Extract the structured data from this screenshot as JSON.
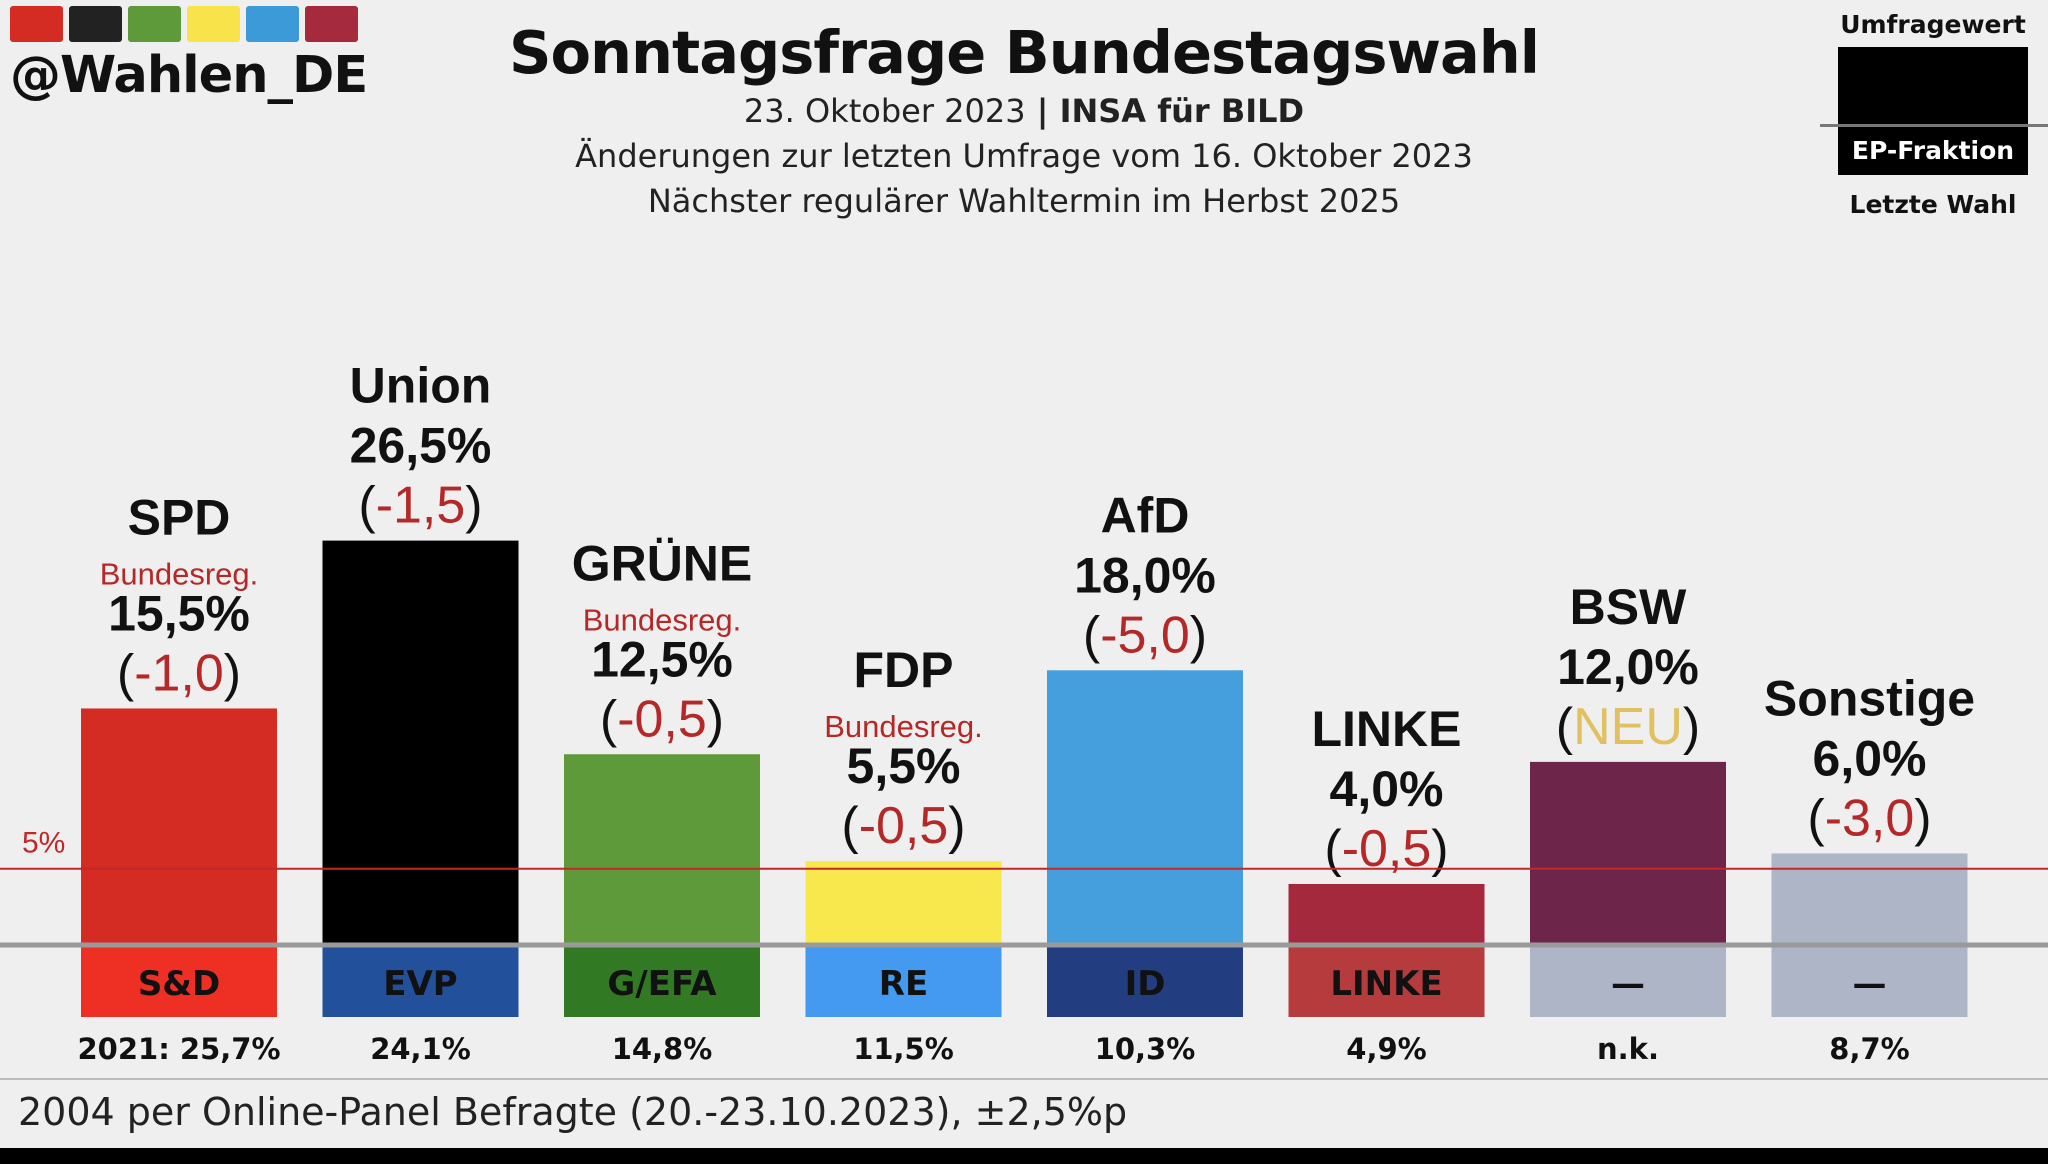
{
  "brand": {
    "handle": "@Wahlen_DE",
    "swatch_colors": [
      "#d42b23",
      "#222222",
      "#5e9a3a",
      "#f8e44a",
      "#3d9ad8",
      "#a52a3e"
    ]
  },
  "header": {
    "title": "Sonntagsfrage Bundestagswahl",
    "date": "23. Oktober 2023",
    "separator": " | ",
    "institute": "INSA für BILD",
    "changes_note": "Änderungen zur letzten Umfrage vom 16. Oktober 2023",
    "next_election": "Nächster regulärer Wahltermin im Herbst 2025"
  },
  "legend": {
    "top_label": "Umfragewert",
    "box_label": "EP-Fraktion",
    "bottom_label": "Letzte Wahl"
  },
  "chart_data": {
    "type": "bar",
    "threshold": {
      "label": "5%",
      "value": 5,
      "color": "#c0282a"
    },
    "ylim": [
      0,
      26.5
    ],
    "parties": [
      {
        "name": "SPD",
        "value": 15.5,
        "value_label": "15,5%",
        "change": "-1,0",
        "gov": "Bundesreg.",
        "color": "#d42b23",
        "ep": "S&D",
        "ep_color": "#ee3024",
        "last": "2021: 25,7%"
      },
      {
        "name": "Union",
        "value": 26.5,
        "value_label": "26,5%",
        "change": "-1,5",
        "gov": "",
        "color": "#000000",
        "ep": "EVP",
        "ep_color": "#22509a",
        "last": "24,1%"
      },
      {
        "name": "GRÜNE",
        "value": 12.5,
        "value_label": "12,5%",
        "change": "-0,5",
        "gov": "Bundesreg.",
        "color": "#5e9a3a",
        "ep": "G/EFA",
        "ep_color": "#317a23",
        "last": "14,8%"
      },
      {
        "name": "FDP",
        "value": 5.5,
        "value_label": "5,5%",
        "change": "-0,5",
        "gov": "Bundesreg.",
        "color": "#f8e84e",
        "ep": "RE",
        "ep_color": "#4499f0",
        "last": "11,5%"
      },
      {
        "name": "AfD",
        "value": 18.0,
        "value_label": "18,0%",
        "change": "-5,0",
        "gov": "",
        "color": "#449fdc",
        "ep": "ID",
        "ep_color": "#223e80",
        "last": "10,3%"
      },
      {
        "name": "LINKE",
        "value": 4.0,
        "value_label": "4,0%",
        "change": "-0,5",
        "gov": "",
        "color": "#a5293d",
        "ep": "LINKE",
        "ep_color": "#b63b3c",
        "last": "4,9%"
      },
      {
        "name": "BSW",
        "value": 12.0,
        "value_label": "12,0%",
        "change": "NEU",
        "gov": "",
        "color": "#6d2649",
        "ep": "—",
        "ep_color": "#adb5c7",
        "last": "n.k."
      },
      {
        "name": "Sonstige",
        "value": 6.0,
        "value_label": "6,0%",
        "change": "-3,0",
        "gov": "",
        "color": "#adb5c7",
        "ep": "—",
        "ep_color": "#adb5c7",
        "last": "8,7%"
      }
    ],
    "change_color": "#b52828",
    "new_color": "#e0c060",
    "gov_color": "#b52828"
  },
  "footer": {
    "note": "2004 per Online-Panel Befragte (20.-23.10.2023), ±2,5%p"
  }
}
